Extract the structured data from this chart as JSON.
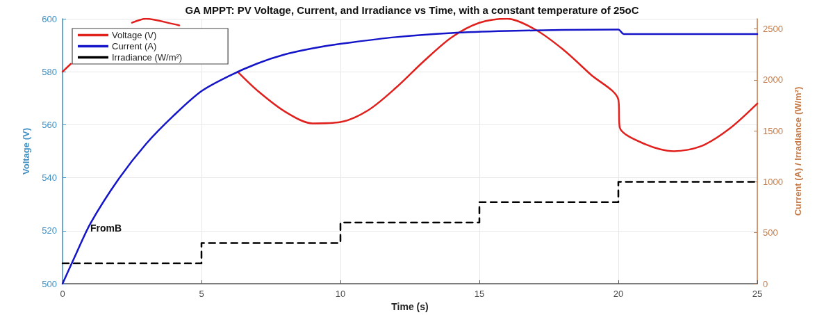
{
  "chart_data": {
    "type": "line",
    "title": "GA MPPT: PV Voltage, Current, and Irradiance vs Time, with a constant temperature of 25oC",
    "xlabel": "Time (s)",
    "ylabel": "Voltage (V)",
    "y2label": "Current (A) / Irradiance (W/m²)",
    "xlim": [
      0,
      25
    ],
    "xticks": [
      0,
      5,
      10,
      15,
      20,
      25
    ],
    "ylim": [
      500,
      600
    ],
    "yticks": [
      500,
      520,
      540,
      560,
      580,
      600
    ],
    "y2lim": [
      0,
      2600
    ],
    "y2ticks": [
      0,
      500,
      1000,
      1500,
      2000,
      2500
    ],
    "grid": true,
    "legend": "top left",
    "marker": "none",
    "annotations": [
      {
        "text": "FromB",
        "x": 1,
        "y": 521
      }
    ],
    "series": [
      {
        "name": "Voltage (V)",
        "color": "#e0201c",
        "line_style": "solid",
        "x": [
          0,
          0.3,
          1,
          2,
          2.5,
          3,
          4,
          4.2,
          5,
          6.3,
          7,
          8,
          9,
          10,
          11,
          12,
          13,
          14,
          15,
          16,
          17,
          18,
          19,
          20,
          20.05,
          21,
          22,
          23,
          24,
          25
        ],
        "values": [
          580,
          583,
          null,
          null,
          598.5,
          600,
          598,
          597.5,
          null,
          580,
          573,
          565,
          560.5,
          561,
          565.5,
          574,
          584,
          593,
          598.5,
          600,
          596,
          588.5,
          579,
          569.5,
          559,
          552.5,
          550,
          552,
          558.5,
          568
        ]
      },
      {
        "name": "Current (A)",
        "color": "#1414c8",
        "line_style": "solid",
        "axis": "y2",
        "x": [
          0,
          0.5,
          1,
          2,
          3,
          4,
          5,
          6,
          7,
          8,
          9,
          10,
          12,
          14,
          16,
          18,
          20,
          20.2,
          25
        ],
        "values": [
          0,
          300,
          590,
          1020,
          1370,
          1650,
          1890,
          2040,
          2160,
          2250,
          2310,
          2354,
          2420,
          2460,
          2480,
          2490,
          2495,
          2450,
          2450
        ]
      },
      {
        "name": "Irradiance (W/m²)",
        "type": "step",
        "color": "#000000",
        "line_style": "dashed",
        "axis": "y2",
        "x": [
          0,
          5,
          10,
          15,
          20,
          25
        ],
        "values": [
          200,
          400,
          600,
          800,
          1000,
          1000
        ]
      }
    ]
  }
}
